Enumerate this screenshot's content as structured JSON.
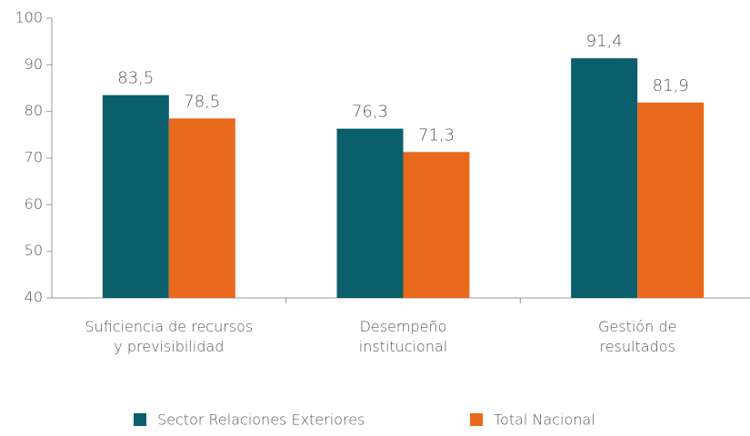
{
  "chart_data": {
    "type": "bar",
    "categories": [
      "Suficiencia de recursos\ny previsibilidad",
      "Desempeño\ninstitucional",
      "Gestión de\nresultados"
    ],
    "series": [
      {
        "name": "Sector Relaciones Exteriores",
        "color": "#0b5e6b",
        "values": [
          83.5,
          76.3,
          91.4
        ],
        "value_labels": [
          "83,5",
          "76,3",
          "91,4"
        ]
      },
      {
        "name": "Total Nacional",
        "color": "#e8691b",
        "values": [
          78.5,
          71.3,
          81.9
        ],
        "value_labels": [
          "78,5",
          "71,3",
          "81,9"
        ]
      }
    ],
    "ylim": [
      40,
      100
    ],
    "yticks": [
      40,
      50,
      60,
      70,
      80,
      90,
      100
    ],
    "grid": false,
    "legend": "bottom"
  }
}
